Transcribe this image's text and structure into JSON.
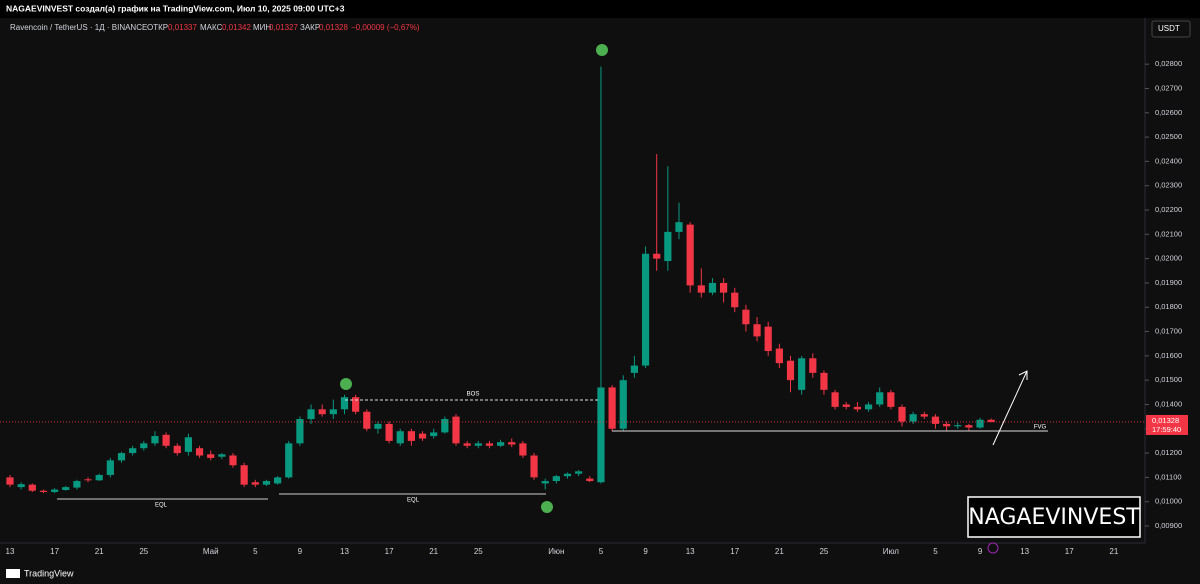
{
  "top_bar": "NAGAEVINVEST создал(а) график на TradingView.com, Июл 10, 2025 09:00 UTC+3",
  "header": {
    "symbol": "Ravencoin / TetherUS · 1Д · BINANCE",
    "open_label": "ОТКР",
    "open": "0,01337",
    "high_label": "МАКС",
    "high": "0,01342",
    "low_label": "МИН",
    "low": "0,01327",
    "close_label": "ЗАКР",
    "close": "0,01328",
    "change": "−0,00009 (−0,67%)"
  },
  "currency": "USDT",
  "price_label": "0,01328",
  "countdown": "17:59:40",
  "annotations": {
    "bos": "BOS",
    "eql_1": "EQL",
    "eql_2": "EQL",
    "fvg": "FVG"
  },
  "watermark": "NAGAEVINVEST",
  "footer": "TradingView",
  "chart_data": {
    "type": "candlestick",
    "up_color": "#089981",
    "down_color": "#f23645",
    "grid": false,
    "ylim": [
      0.0083,
      0.0299
    ],
    "yticks": [
      {
        "value": 0.009,
        "label": "0,00900"
      },
      {
        "value": 0.01,
        "label": "0,01000"
      },
      {
        "value": 0.011,
        "label": "0,01100"
      },
      {
        "value": 0.012,
        "label": "0,01200"
      },
      {
        "value": 0.013,
        "label": "0,01300"
      },
      {
        "value": 0.014,
        "label": "0,01400"
      },
      {
        "value": 0.015,
        "label": "0,01500"
      },
      {
        "value": 0.016,
        "label": "0,01600"
      },
      {
        "value": 0.017,
        "label": "0,01700"
      },
      {
        "value": 0.018,
        "label": "0,01800"
      },
      {
        "value": 0.019,
        "label": "0,01900"
      },
      {
        "value": 0.02,
        "label": "0,02000"
      },
      {
        "value": 0.021,
        "label": "0,02100"
      },
      {
        "value": 0.022,
        "label": "0,02200"
      },
      {
        "value": 0.023,
        "label": "0,02300"
      },
      {
        "value": 0.024,
        "label": "0,02400"
      },
      {
        "value": 0.025,
        "label": "0,02500"
      },
      {
        "value": 0.026,
        "label": "0,02600"
      },
      {
        "value": 0.027,
        "label": "0,02700"
      },
      {
        "value": 0.028,
        "label": "0,02800"
      }
    ],
    "categories": [
      "13",
      null,
      null,
      null,
      "17",
      null,
      null,
      null,
      "21",
      null,
      null,
      null,
      "25",
      null,
      null,
      null,
      null,
      null,
      "Май",
      null,
      null,
      null,
      "5",
      null,
      null,
      null,
      "9",
      null,
      null,
      null,
      "13",
      null,
      null,
      null,
      "17",
      null,
      null,
      null,
      "21",
      null,
      null,
      null,
      "25",
      null,
      null,
      null,
      null,
      null,
      null,
      "Июн",
      null,
      null,
      null,
      "5",
      null,
      null,
      null,
      "9",
      null,
      null,
      null,
      "13",
      null,
      null,
      null,
      "17",
      null,
      null,
      null,
      "21",
      null,
      null,
      null,
      "25",
      null,
      null,
      null,
      null,
      null,
      "Июл",
      null,
      null,
      null,
      "5",
      null,
      null,
      null,
      "9",
      null,
      null,
      null,
      "13",
      null,
      null,
      null,
      "17",
      null,
      null,
      null,
      "21",
      null
    ],
    "open": [
      0.011,
      0.0106,
      0.0107,
      0.01045,
      0.0104,
      0.01048,
      0.01058,
      0.01092,
      0.01088,
      0.0111,
      0.0117,
      0.012,
      0.0122,
      0.0124,
      0.01275,
      0.0123,
      0.01205,
      0.0122,
      0.01195,
      0.01185,
      0.0119,
      0.0115,
      0.0108,
      0.0107,
      0.01075,
      0.011,
      0.0124,
      0.0134,
      0.0138,
      0.0136,
      0.0138,
      0.0143,
      0.0137,
      0.013,
      0.0132,
      0.0124,
      0.0129,
      0.0128,
      0.0127,
      0.01285,
      0.0135,
      0.0124,
      0.0123,
      0.0124,
      0.0123,
      0.01245,
      0.0124,
      0.0119,
      0.01075,
      0.01085,
      0.01105,
      0.01115,
      0.01095,
      0.0108,
      0.0147,
      0.013,
      0.0153,
      0.0156,
      0.0202,
      0.0199,
      0.0211,
      0.0214,
      0.0189,
      0.0186,
      0.019,
      0.0186,
      0.0179,
      0.0173,
      0.0172,
      0.0163,
      0.0158,
      0.0146,
      0.0159,
      0.0153,
      0.0145,
      0.014,
      0.0139,
      0.0138,
      0.014,
      0.0145,
      0.0139,
      0.0133,
      0.0136,
      0.0135,
      0.0132,
      0.0131,
      0.01315,
      0.01305,
      0.01337,
      null,
      null,
      null,
      null,
      null,
      null,
      null,
      null,
      null,
      null,
      null,
      null
    ],
    "high": [
      0.0111,
      0.0108,
      0.01075,
      0.0105,
      0.01055,
      0.01065,
      0.0109,
      0.011,
      0.01115,
      0.0118,
      0.01205,
      0.0123,
      0.0125,
      0.0129,
      0.01285,
      0.0124,
      0.0128,
      0.0123,
      0.0121,
      0.012,
      0.012,
      0.0116,
      0.0109,
      0.0109,
      0.01105,
      0.0125,
      0.0135,
      0.014,
      0.014,
      0.0142,
      0.0144,
      0.0144,
      0.0138,
      0.0133,
      0.0133,
      0.013,
      0.013,
      0.0129,
      0.013,
      0.0135,
      0.0136,
      0.0125,
      0.0125,
      0.0125,
      0.01255,
      0.0126,
      0.0125,
      0.012,
      0.01095,
      0.0111,
      0.0112,
      0.0113,
      0.01105,
      0.0279,
      0.0148,
      0.0152,
      0.016,
      0.0205,
      0.0243,
      0.0238,
      0.0223,
      0.0215,
      0.0196,
      0.0192,
      0.0192,
      0.0188,
      0.0181,
      0.0176,
      0.0174,
      0.0165,
      0.016,
      0.016,
      0.0161,
      0.0154,
      0.0146,
      0.0141,
      0.0141,
      0.0141,
      0.0147,
      0.0146,
      0.014,
      0.0137,
      0.0137,
      0.0136,
      0.0133,
      0.01325,
      0.0132,
      0.01345,
      0.01342,
      null,
      null,
      null,
      null,
      null,
      null,
      null,
      null,
      null,
      null,
      null,
      null
    ],
    "low": [
      0.0106,
      0.0105,
      0.0104,
      0.01035,
      0.01035,
      0.01045,
      0.0105,
      0.0108,
      0.01085,
      0.011,
      0.0116,
      0.0119,
      0.0121,
      0.0123,
      0.0122,
      0.0119,
      0.0119,
      0.0118,
      0.0117,
      0.01175,
      0.0114,
      0.0106,
      0.0106,
      0.01065,
      0.0107,
      0.01095,
      0.0123,
      0.0132,
      0.0135,
      0.0134,
      0.0136,
      0.0136,
      0.0129,
      0.0128,
      0.0124,
      0.0123,
      0.0123,
      0.0125,
      0.0126,
      0.0128,
      0.0123,
      0.0122,
      0.0122,
      0.0122,
      0.01225,
      0.01225,
      0.0118,
      0.0109,
      0.0105,
      0.01075,
      0.01095,
      0.01105,
      0.0108,
      0.01075,
      0.0129,
      0.0129,
      0.0151,
      0.0155,
      0.0195,
      0.0195,
      0.0208,
      0.0186,
      0.0184,
      0.0185,
      0.0182,
      0.0178,
      0.017,
      0.0166,
      0.016,
      0.0155,
      0.0145,
      0.0144,
      0.0151,
      0.0144,
      0.0138,
      0.0138,
      0.0137,
      0.0137,
      0.0139,
      0.0138,
      0.0131,
      0.0132,
      0.0134,
      0.013,
      0.0129,
      0.013,
      0.0129,
      0.013,
      0.01327,
      null,
      null,
      null,
      null,
      null,
      null,
      null,
      null,
      null,
      null,
      null,
      null
    ],
    "close": [
      0.0107,
      0.01072,
      0.01045,
      0.0104,
      0.0105,
      0.0106,
      0.01085,
      0.01088,
      0.0111,
      0.0117,
      0.012,
      0.0122,
      0.0124,
      0.0127,
      0.0123,
      0.012,
      0.01265,
      0.0119,
      0.0118,
      0.01195,
      0.0115,
      0.0107,
      0.0107,
      0.01085,
      0.011,
      0.0124,
      0.0134,
      0.0138,
      0.0136,
      0.0138,
      0.0143,
      0.0137,
      0.013,
      0.0132,
      0.0125,
      0.0129,
      0.0125,
      0.0126,
      0.01285,
      0.0134,
      0.0124,
      0.0123,
      0.0124,
      0.0123,
      0.01245,
      0.01235,
      0.0119,
      0.011,
      0.01085,
      0.01105,
      0.01115,
      0.01125,
      0.01085,
      0.0147,
      0.013,
      0.015,
      0.0156,
      0.0202,
      0.02,
      0.0211,
      0.0215,
      0.0189,
      0.0186,
      0.019,
      0.0186,
      0.018,
      0.0173,
      0.0168,
      0.0162,
      0.0157,
      0.015,
      0.0159,
      0.0153,
      0.0146,
      0.0139,
      0.0139,
      0.0138,
      0.014,
      0.0145,
      0.0139,
      0.0133,
      0.0136,
      0.0135,
      0.0132,
      0.0131,
      0.01315,
      0.01305,
      0.01337,
      0.01328,
      null,
      null,
      null,
      null,
      null,
      null,
      null,
      null,
      null,
      null,
      null,
      null
    ]
  }
}
